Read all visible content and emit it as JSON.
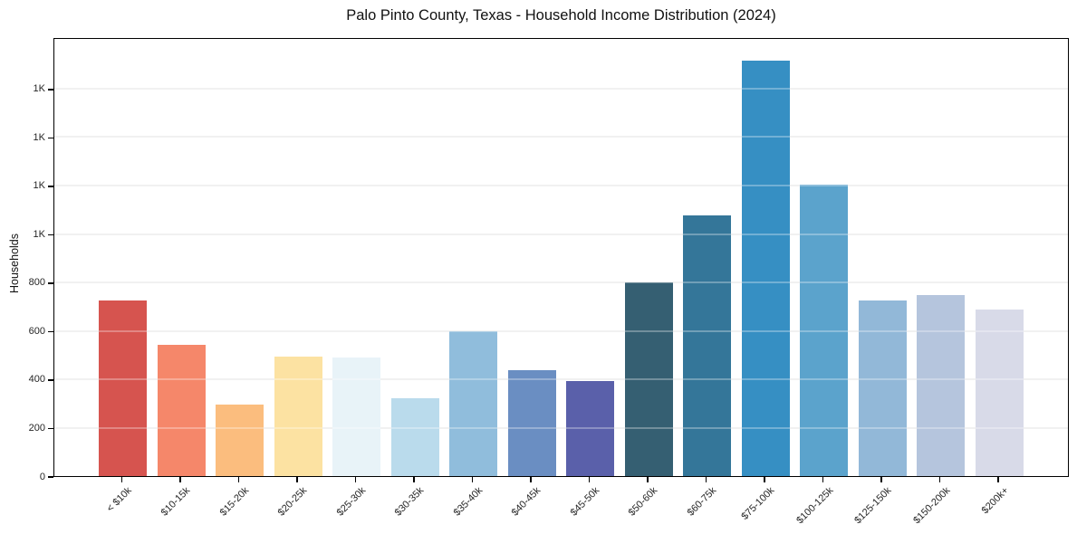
{
  "chart_data": {
    "type": "bar",
    "title": "Palo Pinto County, Texas - Household Income Distribution (2024)",
    "xlabel": "",
    "ylabel": "Households",
    "ylim": [
      0,
      1813
    ],
    "grid": "horizontal",
    "legend": "none",
    "categories": [
      "< $10k",
      "$10-15k",
      "$15-20k",
      "$20-25k",
      "$25-30k",
      "$30-35k",
      "$35-40k",
      "$40-45k",
      "$45-50k",
      "$50-60k",
      "$60-75k",
      "$75-100k",
      "$100-125k",
      "$125-150k",
      "$150-200k",
      "$200k+"
    ],
    "values": [
      725,
      542,
      295,
      493,
      490,
      321,
      597,
      437,
      393,
      800,
      1076,
      1715,
      1203,
      725,
      748,
      688
    ],
    "bar_colors": [
      "#d6544f",
      "#f5876a",
      "#fbbd7e",
      "#fce2a2",
      "#e8f3f8",
      "#badbec",
      "#90bddc",
      "#6a8ec2",
      "#5a60aa",
      "#355f72",
      "#347699",
      "#368fc3",
      "#5ba3cc",
      "#92b8d8",
      "#b5c5dd",
      "#d8dae8"
    ],
    "y_ticks": [
      {
        "value": 0,
        "label": "0"
      },
      {
        "value": 200,
        "label": "200"
      },
      {
        "value": 400,
        "label": "400"
      },
      {
        "value": 600,
        "label": "600"
      },
      {
        "value": 800,
        "label": "800"
      },
      {
        "value": 1000,
        "label": "1K"
      },
      {
        "value": 1200,
        "label": "1K"
      },
      {
        "value": 1400,
        "label": "1K"
      },
      {
        "value": 1600,
        "label": "1K"
      }
    ],
    "colors": {
      "background": "#ffffff",
      "frame": "#000000",
      "gridline": "#ebebeb",
      "text": "#262626"
    }
  }
}
